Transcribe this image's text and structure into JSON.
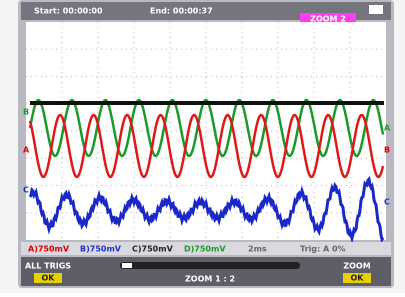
{
  "header": {
    "start": "Start: 00:00:00",
    "end": "End: 00:00:37",
    "badge": "ZOOM 2"
  },
  "markers": {
    "left_red": "A",
    "left_green": "B",
    "left_blue": "C",
    "right_green": "A",
    "right_red": "B",
    "right_blue": "C"
  },
  "status": [
    "A)750mV",
    "B)750mV",
    "C)750mV",
    "D)750mV",
    "2ms",
    "Trig: A 0%"
  ],
  "keys": {
    "left_label": "ALL TRIGS",
    "left_key": "OK",
    "center_label": "ZOOM 1 : 2",
    "right_label": "ZOOM",
    "right_key": "OK"
  }
}
